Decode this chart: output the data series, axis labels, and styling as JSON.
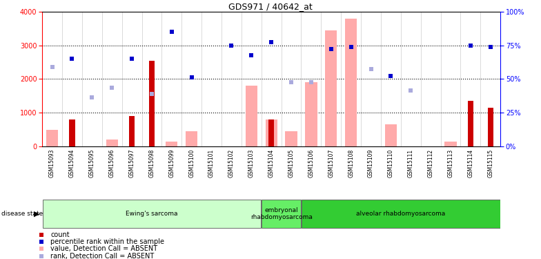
{
  "title": "GDS971 / 40642_at",
  "samples": [
    "GSM15093",
    "GSM15094",
    "GSM15095",
    "GSM15096",
    "GSM15097",
    "GSM15098",
    "GSM15099",
    "GSM15100",
    "GSM15101",
    "GSM15102",
    "GSM15103",
    "GSM15104",
    "GSM15105",
    "GSM15106",
    "GSM15107",
    "GSM15108",
    "GSM15109",
    "GSM15110",
    "GSM15111",
    "GSM15112",
    "GSM15113",
    "GSM15114",
    "GSM15115"
  ],
  "count": [
    0,
    800,
    0,
    0,
    900,
    2550,
    0,
    0,
    0,
    0,
    0,
    800,
    0,
    0,
    0,
    0,
    0,
    0,
    0,
    0,
    0,
    1350,
    1150
  ],
  "value_absent": [
    500,
    0,
    0,
    200,
    0,
    0,
    150,
    450,
    0,
    0,
    1800,
    800,
    450,
    1900,
    3450,
    3800,
    0,
    650,
    0,
    0,
    150,
    0,
    0
  ],
  "rank_absent": [
    2350,
    0,
    1450,
    1750,
    0,
    1550,
    0,
    0,
    0,
    0,
    0,
    0,
    1900,
    1900,
    0,
    0,
    2300,
    0,
    1650,
    0,
    0,
    0,
    0
  ],
  "percentile": [
    0,
    2600,
    0,
    0,
    2600,
    0,
    3400,
    2050,
    0,
    3000,
    2700,
    3100,
    0,
    0,
    2900,
    2950,
    0,
    2100,
    0,
    0,
    0,
    3000,
    2950
  ],
  "disease_groups": [
    {
      "label": "Ewing's sarcoma",
      "start": 0,
      "end": 11,
      "color": "#ccffcc"
    },
    {
      "label": "embryonal\nrhabdomyosarcoma",
      "start": 11,
      "end": 13,
      "color": "#66ee66"
    },
    {
      "label": "alveolar rhabdomyosarcoma",
      "start": 13,
      "end": 23,
      "color": "#33cc33"
    }
  ],
  "ylim_left": [
    0,
    4000
  ],
  "ylim_right": [
    0,
    100
  ],
  "yticks_left": [
    0,
    1000,
    2000,
    3000,
    4000
  ],
  "yticks_right": [
    0,
    25,
    50,
    75,
    100
  ],
  "color_count": "#cc0000",
  "color_value_abs": "#ffaaaa",
  "color_rank_abs": "#aaaadd",
  "color_pct": "#0000cc",
  "xticklabel_bg": "#cccccc",
  "grid_lines": [
    1000,
    2000,
    3000
  ]
}
